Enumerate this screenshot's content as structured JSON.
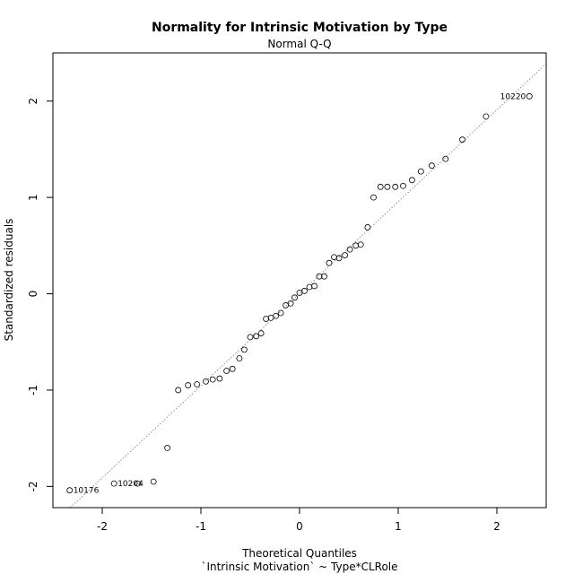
{
  "chart_data": {
    "type": "scatter",
    "title": "Normality for Intrinsic Motivation by Type",
    "subtitle": "Normal Q-Q",
    "xlabel": "Theoretical Quantiles",
    "xlabel2": "`Intrinsic Motivation` ~ Type*CLRole",
    "ylabel": "Standardized residuals",
    "xlim": [
      -2.5,
      2.5
    ],
    "ylim": [
      -2.22,
      2.5
    ],
    "x_ticks": [
      -2,
      -1,
      0,
      1,
      2
    ],
    "x_tick_labels": [
      "-2",
      "-1",
      "0",
      "1",
      "2"
    ],
    "y_ticks": [
      -2,
      -1,
      0,
      1,
      2
    ],
    "y_tick_labels": [
      "-2",
      "-1",
      "0",
      "1",
      "2"
    ],
    "grid": false,
    "reference_line": {
      "intercept": 0.0,
      "slope": 0.955
    },
    "points": [
      {
        "x": -2.33,
        "y": -2.04
      },
      {
        "x": -1.88,
        "y": -1.97
      },
      {
        "x": -1.64,
        "y": -1.97
      },
      {
        "x": -1.48,
        "y": -1.95
      },
      {
        "x": -1.34,
        "y": -1.6
      },
      {
        "x": -1.23,
        "y": -1.0
      },
      {
        "x": -1.13,
        "y": -0.95
      },
      {
        "x": -1.04,
        "y": -0.94
      },
      {
        "x": -0.95,
        "y": -0.91
      },
      {
        "x": -0.88,
        "y": -0.89
      },
      {
        "x": -0.81,
        "y": -0.88
      },
      {
        "x": -0.74,
        "y": -0.8
      },
      {
        "x": -0.68,
        "y": -0.78
      },
      {
        "x": -0.61,
        "y": -0.67
      },
      {
        "x": -0.56,
        "y": -0.58
      },
      {
        "x": -0.5,
        "y": -0.45
      },
      {
        "x": -0.44,
        "y": -0.44
      },
      {
        "x": -0.39,
        "y": -0.41
      },
      {
        "x": -0.34,
        "y": -0.26
      },
      {
        "x": -0.29,
        "y": -0.25
      },
      {
        "x": -0.24,
        "y": -0.23
      },
      {
        "x": -0.19,
        "y": -0.2
      },
      {
        "x": -0.14,
        "y": -0.12
      },
      {
        "x": -0.09,
        "y": -0.1
      },
      {
        "x": -0.05,
        "y": -0.04
      },
      {
        "x": 0.0,
        "y": 0.01
      },
      {
        "x": 0.05,
        "y": 0.03
      },
      {
        "x": 0.1,
        "y": 0.07
      },
      {
        "x": 0.15,
        "y": 0.08
      },
      {
        "x": 0.2,
        "y": 0.18
      },
      {
        "x": 0.25,
        "y": 0.18
      },
      {
        "x": 0.3,
        "y": 0.32
      },
      {
        "x": 0.35,
        "y": 0.38
      },
      {
        "x": 0.4,
        "y": 0.37
      },
      {
        "x": 0.46,
        "y": 0.4
      },
      {
        "x": 0.51,
        "y": 0.46
      },
      {
        "x": 0.57,
        "y": 0.5
      },
      {
        "x": 0.62,
        "y": 0.51
      },
      {
        "x": 0.69,
        "y": 0.69
      },
      {
        "x": 0.75,
        "y": 1.0
      },
      {
        "x": 0.82,
        "y": 1.11
      },
      {
        "x": 0.89,
        "y": 1.11
      },
      {
        "x": 0.97,
        "y": 1.11
      },
      {
        "x": 1.05,
        "y": 1.12
      },
      {
        "x": 1.14,
        "y": 1.18
      },
      {
        "x": 1.23,
        "y": 1.27
      },
      {
        "x": 1.34,
        "y": 1.33
      },
      {
        "x": 1.48,
        "y": 1.4
      },
      {
        "x": 1.65,
        "y": 1.6
      },
      {
        "x": 1.89,
        "y": 1.84
      },
      {
        "x": 2.33,
        "y": 2.05
      }
    ],
    "point_labels": [
      {
        "x": 2.33,
        "y": 2.05,
        "text": "10220",
        "side": "left"
      },
      {
        "x": -2.33,
        "y": -2.04,
        "text": "10176",
        "side": "right"
      },
      {
        "x": -1.88,
        "y": -1.97,
        "text": "10204",
        "side": "right"
      }
    ]
  }
}
